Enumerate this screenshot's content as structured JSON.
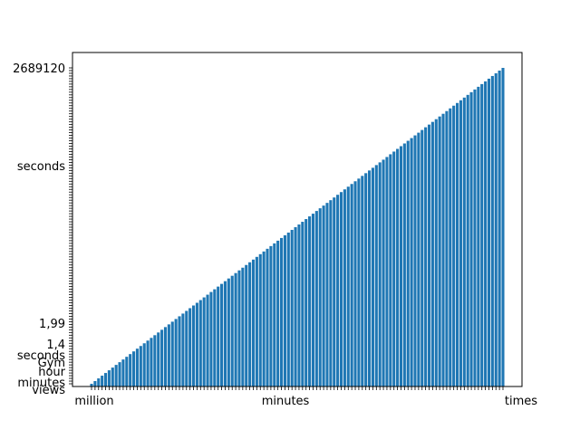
{
  "chart_data": {
    "type": "bar",
    "title": "",
    "xlabel": "",
    "ylabel": "",
    "bar_color": "#1f77b4",
    "frame_color": "#000000",
    "grid": false,
    "legend": "none",
    "bar_count": 118,
    "values_trend": "increasing step-wise, one rank per bar (categorical y-axis)",
    "x_tick_labels_readable": [
      "million",
      "minutes",
      "times"
    ],
    "y_tick_labels_readable": [
      "views",
      "minutes",
      "hour",
      "Gym",
      "seconds",
      "1,4",
      "1,99",
      "seconds",
      "2689120"
    ]
  }
}
